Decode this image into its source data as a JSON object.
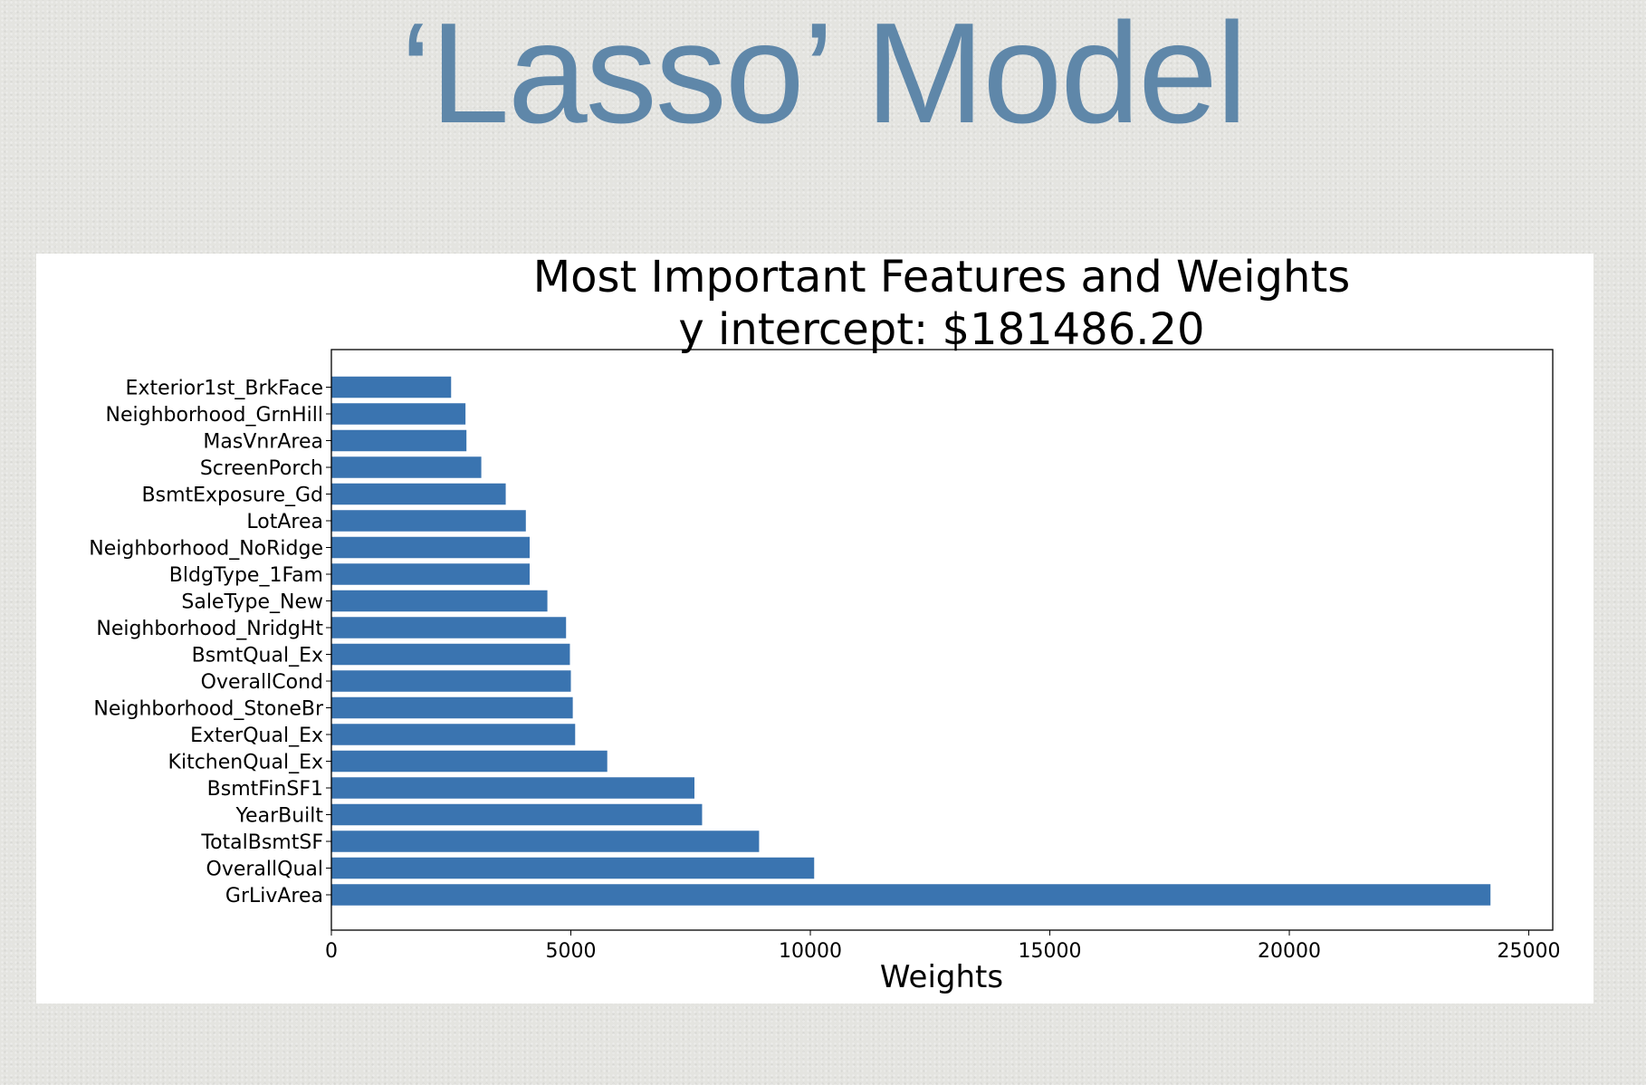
{
  "slide": {
    "title": "‘Lasso’ Model",
    "title_color": "#5f87a9"
  },
  "chart_data": {
    "type": "bar",
    "orientation": "horizontal",
    "title": "Most Important Features and Weights",
    "subtitle": "y intercept: $181486.20",
    "xlabel": "Weights",
    "ylabel": "",
    "xlim": [
      0,
      25500
    ],
    "xticks": [
      "0",
      "5000",
      "10000",
      "15000",
      "20000",
      "25000"
    ],
    "grid": false,
    "bar_color": "#3a74b0",
    "categories": [
      "Exterior1st_BrkFace",
      "Neighborhood_GrnHill",
      "MasVnrArea",
      "ScreenPorch",
      "BsmtExposure_Gd",
      "LotArea",
      "Neighborhood_NoRidge",
      "BldgType_1Fam",
      "SaleType_New",
      "Neighborhood_NridgHt",
      "BsmtQual_Ex",
      "OverallCond",
      "Neighborhood_StoneBr",
      "ExterQual_Ex",
      "KitchenQual_Ex",
      "BsmtFinSF1",
      "YearBuilt",
      "TotalBsmtSF",
      "OverallQual",
      "GrLivArea"
    ],
    "values": [
      2500,
      2800,
      2820,
      3130,
      3640,
      4060,
      4140,
      4140,
      4510,
      4900,
      4980,
      5000,
      5040,
      5090,
      5760,
      7580,
      7740,
      8930,
      10080,
      24200
    ]
  }
}
